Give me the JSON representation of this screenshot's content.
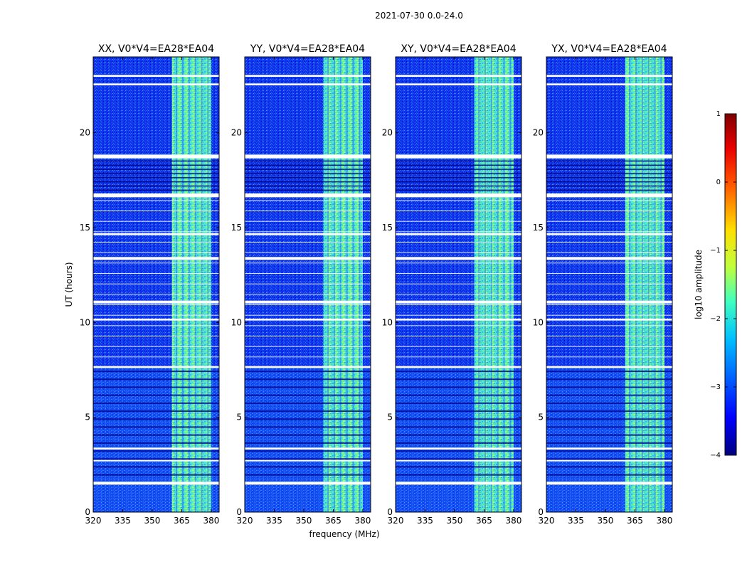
{
  "figure_title": "2021-07-30 0.0-24.0",
  "chart_data": [
    {
      "type": "heatmap",
      "title": "XX, V0*V4=EA28*EA04",
      "xlabel": "",
      "ylabel": "UT (hours)",
      "xlim": [
        320,
        384
      ],
      "ylim": [
        0,
        24
      ],
      "xticks": [
        "320",
        "335",
        "350",
        "365",
        "380"
      ],
      "yticks": [
        "0",
        "5",
        "10",
        "15",
        "20"
      ],
      "z_quantity": "log10 amplitude",
      "background_level": -3.2,
      "rfi_band_mhz": [
        360,
        380
      ],
      "rfi_band_level": -1.6
    },
    {
      "type": "heatmap",
      "title": "YY, V0*V4=EA28*EA04",
      "xlabel": "",
      "ylabel": "",
      "xlim": [
        320,
        384
      ],
      "ylim": [
        0,
        24
      ],
      "xticks": [
        "320",
        "335",
        "350",
        "365",
        "380"
      ],
      "yticks": [
        "0",
        "5",
        "10",
        "15",
        "20"
      ],
      "z_quantity": "log10 amplitude",
      "background_level": -3.2,
      "rfi_band_mhz": [
        360,
        380
      ],
      "rfi_band_level": -1.6
    },
    {
      "type": "heatmap",
      "title": "XY, V0*V4=EA28*EA04",
      "xlabel": "",
      "ylabel": "",
      "xlim": [
        320,
        384
      ],
      "ylim": [
        0,
        24
      ],
      "xticks": [
        "320",
        "335",
        "350",
        "365",
        "380"
      ],
      "yticks": [
        "0",
        "5",
        "10",
        "15",
        "20"
      ],
      "z_quantity": "log10 amplitude",
      "background_level": -3.2,
      "rfi_band_mhz": [
        360,
        380
      ],
      "rfi_band_level": -1.6
    },
    {
      "type": "heatmap",
      "title": "YX, V0*V4=EA28*EA04",
      "xlabel": "",
      "ylabel": "",
      "xlim": [
        320,
        384
      ],
      "ylim": [
        0,
        24
      ],
      "xticks": [
        "320",
        "335",
        "350",
        "365",
        "380"
      ],
      "yticks": [
        "0",
        "5",
        "10",
        "15",
        "20"
      ],
      "z_quantity": "log10 amplitude",
      "background_level": -3.2,
      "rfi_band_mhz": [
        360,
        380
      ],
      "rfi_band_level": -1.6
    }
  ],
  "shared_xlabel": "frequency (MHz)",
  "colorbar": {
    "label": "log10 amplitude",
    "range": [
      -4,
      1
    ],
    "ticks": [
      "1",
      "0",
      "−1",
      "−2",
      "−3",
      "−4"
    ],
    "colormap": [
      "#00007f",
      "#0000ff",
      "#007fff",
      "#00ffff",
      "#7fff7f",
      "#ffff00",
      "#ff7f00",
      "#ff0000",
      "#7f0000"
    ]
  },
  "flagged_intervals_hours": [
    [
      1.45,
      1.6
    ],
    [
      2.7,
      2.75
    ],
    [
      3.3,
      3.4
    ],
    [
      7.6,
      7.7
    ],
    [
      10.1,
      10.2
    ],
    [
      11.0,
      11.15
    ],
    [
      13.3,
      13.45
    ],
    [
      14.6,
      14.7
    ],
    [
      16.6,
      16.8
    ],
    [
      18.65,
      18.85
    ],
    [
      22.5,
      22.6
    ],
    [
      22.95,
      23.05
    ]
  ]
}
